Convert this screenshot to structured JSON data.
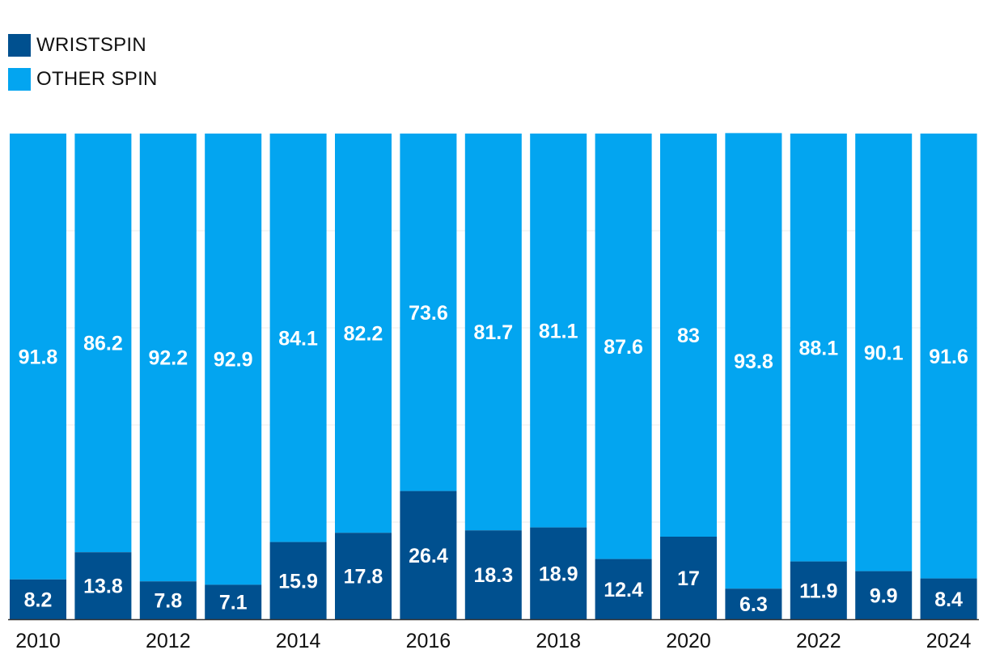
{
  "chart_data": {
    "type": "bar",
    "stacked": true,
    "percent": true,
    "title": "",
    "xlabel": "",
    "ylabel": "",
    "ylim": [
      0,
      100
    ],
    "grid": true,
    "legend_position": "top-left",
    "categories": [
      "2010",
      "2011",
      "2012",
      "2013",
      "2014",
      "2015",
      "2016",
      "2017",
      "2018",
      "2019",
      "2020",
      "2021",
      "2022",
      "2023",
      "2024"
    ],
    "x_tick_labels": [
      "2010",
      "",
      "2012",
      "",
      "2014",
      "",
      "2016",
      "",
      "2018",
      "",
      "2020",
      "",
      "2022",
      "",
      "2024"
    ],
    "series": [
      {
        "name": "WRISTSPIN",
        "color": "#00508f",
        "values": [
          8.2,
          13.8,
          7.8,
          7.1,
          15.9,
          17.8,
          26.4,
          18.3,
          18.9,
          12.4,
          17,
          6.3,
          11.9,
          9.9,
          8.4
        ]
      },
      {
        "name": "OTHER SPIN",
        "color": "#03a5f0",
        "values": [
          91.8,
          86.2,
          92.2,
          92.9,
          84.1,
          82.2,
          73.6,
          81.7,
          81.1,
          87.6,
          83,
          93.8,
          88.1,
          90.1,
          91.6
        ]
      }
    ]
  }
}
